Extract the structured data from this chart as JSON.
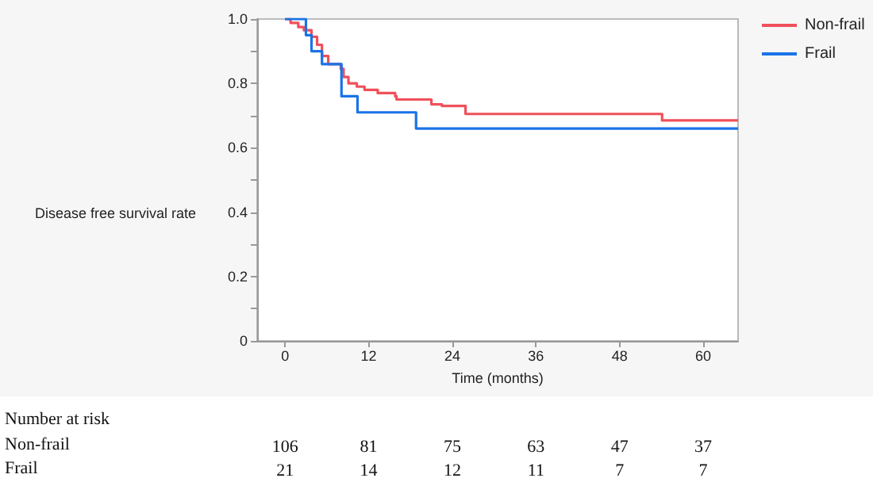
{
  "chart_data": {
    "type": "step",
    "xlabel": "Time (months)",
    "ylabel": "Disease free survival rate",
    "xlim": [
      -4,
      65
    ],
    "xticks": [
      0,
      12,
      24,
      36,
      48,
      60
    ],
    "ylim": [
      0,
      1
    ],
    "yticks": [
      0,
      {
        "value": 0.1,
        "label": null
      },
      0.2,
      {
        "value": 0.3,
        "label": null
      },
      0.4,
      {
        "value": 0.5,
        "label": null
      },
      0.6,
      {
        "value": 0.7,
        "label": null
      },
      0.8,
      {
        "value": 0.9,
        "label": null
      },
      {
        "value": 1,
        "label": "1.0"
      }
    ],
    "grid": false,
    "legend": "top right",
    "marker": "none",
    "line_style": "solid",
    "series": [
      {
        "name": "Non-frail",
        "color": "#f0505a",
        "x": [
          0,
          0.8,
          1.9,
          2.7,
          3.8,
          4.6,
          5.3,
          6.2,
          8,
          8.4,
          9.1,
          10.3,
          11.4,
          13.3,
          15.8,
          16,
          21,
          22.5,
          25.9,
          54.1,
          65
        ],
        "values": [
          1,
          0.988,
          0.975,
          0.965,
          0.945,
          0.92,
          0.885,
          0.86,
          0.845,
          0.82,
          0.8,
          0.79,
          0.78,
          0.77,
          0.76,
          0.75,
          0.735,
          0.73,
          0.705,
          0.685,
          0.685
        ]
      },
      {
        "name": "Frail",
        "color": "#1a73e8",
        "x": [
          0,
          3,
          3.8,
          5.3,
          8.1,
          10.4,
          18.8,
          65
        ],
        "values": [
          1,
          0.95,
          0.9,
          0.86,
          0.76,
          0.71,
          0.66,
          0.66
        ]
      }
    ],
    "annotations": [
      "Number at risk",
      "Non-frail",
      "106",
      "81",
      "75",
      "63",
      "47",
      "37",
      "Frail",
      "21",
      "14",
      "12",
      "11",
      "7",
      "7"
    ]
  }
}
